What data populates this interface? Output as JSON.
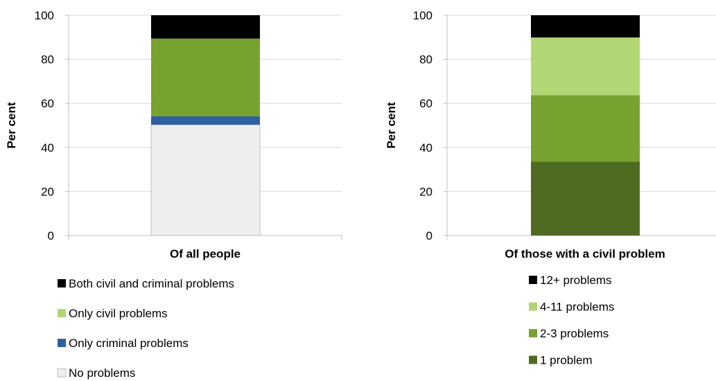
{
  "chart_data": [
    {
      "type": "bar",
      "stacked": true,
      "categories": [
        "Of all people"
      ],
      "ylabel": "Per cent",
      "ylim": [
        0,
        100
      ],
      "yticks": [
        0,
        20,
        40,
        60,
        80,
        100
      ],
      "grid": true,
      "legend_position": "bottom",
      "series": [
        {
          "name": "No problems",
          "values": [
            50.3
          ],
          "color": "#eeeeee"
        },
        {
          "name": "Only criminal problems",
          "values": [
            3.8
          ],
          "color": "#2e5fa1"
        },
        {
          "name": "Only civil problems",
          "values": [
            35.3
          ],
          "color": "#78a22f"
        },
        {
          "name": "Both civil and criminal problems",
          "values": [
            10.6
          ],
          "color": "#000000"
        }
      ],
      "legend": [
        {
          "label": "Both civil and criminal problems",
          "color": "#000000"
        },
        {
          "label": "Only civil problems",
          "color": "#b3d675"
        },
        {
          "label": "Only criminal problems",
          "color": "#2e5fa1"
        },
        {
          "label": "No problems",
          "color": "#eeeeee"
        }
      ]
    },
    {
      "type": "bar",
      "stacked": true,
      "categories": [
        "Of those with a civil problem"
      ],
      "ylabel": "Per cent",
      "ylim": [
        0,
        100
      ],
      "yticks": [
        0,
        20,
        40,
        60,
        80,
        100
      ],
      "grid": true,
      "legend_position": "bottom",
      "series": [
        {
          "name": "1 problem",
          "values": [
            33.5
          ],
          "color": "#4f6b22"
        },
        {
          "name": "2-3 problems",
          "values": [
            30.2
          ],
          "color": "#78a22f"
        },
        {
          "name": "4-11 problems",
          "values": [
            26.2
          ],
          "color": "#b3d675"
        },
        {
          "name": "12+ problems",
          "values": [
            10.1
          ],
          "color": "#000000"
        }
      ],
      "legend": [
        {
          "label": "12+ problems",
          "color": "#000000"
        },
        {
          "label": "4-11 problems",
          "color": "#b3d675"
        },
        {
          "label": "2-3 problems",
          "color": "#78a22f"
        },
        {
          "label": "1 problem",
          "color": "#4f6b22"
        }
      ]
    }
  ]
}
